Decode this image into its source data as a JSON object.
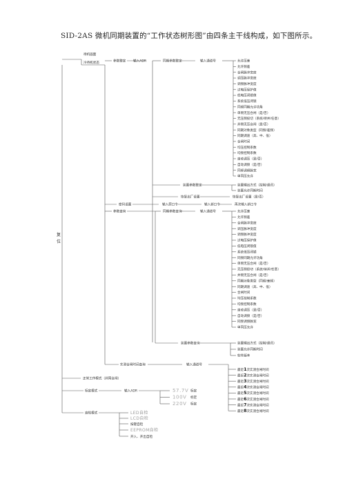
{
  "caption": "SID-2AS 微机同期装置的“工作状态树形图”由四条主干线构成，如下图所示。",
  "root": "复位",
  "standby": {
    "title": "待机画面",
    "sub": "冷待机状态"
  },
  "params": {
    "title": "参数整定",
    "enter": "输入ADR",
    "sync_set": {
      "title": "同期参数整定",
      "enter": "输入通道号",
      "items": [
        "允许压差",
        "允许频差",
        "合闸脉冲宽度",
        "调压脉冲宽度",
        "调频脉冲宽度",
        "过电压保护值",
        "低电压闭锁值",
        "系统低压闭锁",
        "同频同期允许功角",
        "单侧无压合闸（是/否）",
        "无压侧投切（系统/待并/任意）",
        "并侧无压合闸（是/否）",
        "同期对象类型（同频/差频）",
        "同期调速（高、中、低）",
        "合闸时间",
        "均压控制系数",
        "均频控制系数",
        "自动调压（是/否）",
        "自动调频（是/否）",
        "同频调频脉宽",
        "单同压允许"
      ]
    },
    "dev_set": {
      "title": "装置参数整定",
      "items": [
        "装置输出方式（控制/通讯）",
        "装置允许同期时间"
      ]
    },
    "factory": {
      "title": "恢复出厂设置",
      "item": "恢复出厂设置（是/否）"
    }
  },
  "pwd": {
    "title": "密码设置",
    "enter1": "输入原口令",
    "enter2": "输入新口令",
    "item": "再次输入新口令"
  },
  "query": {
    "title": "参数查询",
    "sync_query": {
      "title": "同期参数查询",
      "enter": "输入通道号",
      "items": [
        "允许压差",
        "允许频差",
        "合闸脉冲宽度",
        "调压脉冲宽度",
        "调频脉冲宽度",
        "过电压保护值",
        "低电压闭锁值",
        "系统低压闭锁",
        "同频同期允许功角",
        "单侧无压合闸（是/否）",
        "无压侧投切（系统/待并/任意）",
        "并侧无压合闸（是/否）",
        "同期对象类型（同频/差频）",
        "同期调速（高、中、低）",
        "合闸时间",
        "均压控制系数",
        "均频控制系数",
        "自动调压（是/否）",
        "自动调频（是/否）",
        "同频调频脉宽",
        "单同压允许"
      ]
    },
    "dev_query": {
      "title": "装置参数查询",
      "items": [
        "装置输出方式（控制/通讯）",
        "装置允许同期时间",
        "软件版本"
      ]
    }
  },
  "record": {
    "title": "实测合闸时间查询",
    "enter": "输入通道号",
    "pre": "最近",
    "post": "次实测合闸时间",
    "nums": [
      "1",
      "2",
      "3",
      "4",
      "5",
      "6",
      "7",
      "8"
    ]
  },
  "normal": {
    "title": "正常工作模式（并网合闸）"
  },
  "calib": {
    "title": "标定模式",
    "enter": "输入ADR",
    "items": [
      "57.7V",
      "100V",
      "220V"
    ],
    "suffix": "标定"
  },
  "selfcheck": {
    "title": "自检模式",
    "items": [
      "LED自检",
      "LCD自检",
      "按键自检",
      "EEPROM自检",
      "开入、开出自检"
    ]
  }
}
